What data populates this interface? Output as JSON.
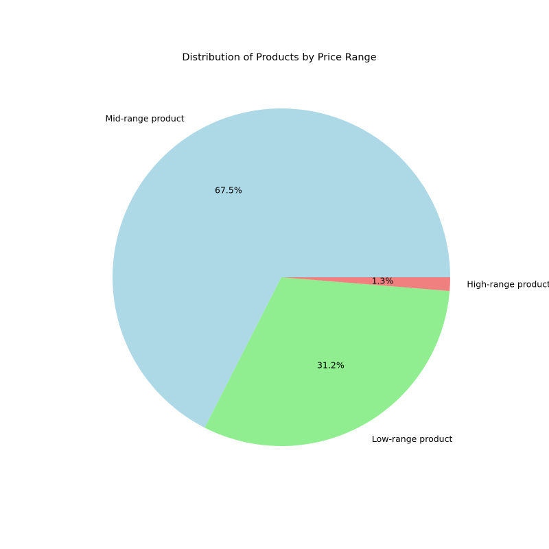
{
  "chart_data": {
    "type": "pie",
    "title": "Distribution of Products by Price Range",
    "slices": [
      {
        "label": "Mid-range product",
        "value": 67.5,
        "pct_label": "67.5%",
        "color": "#add8e6"
      },
      {
        "label": "Low-range product",
        "value": 31.2,
        "pct_label": "31.2%",
        "color": "#90ee90"
      },
      {
        "label": "High-range product",
        "value": 1.3,
        "pct_label": "1.3%",
        "color": "#f08080"
      }
    ],
    "start_angle_deg": 0,
    "direction": "counterclockwise",
    "legend": "none"
  }
}
